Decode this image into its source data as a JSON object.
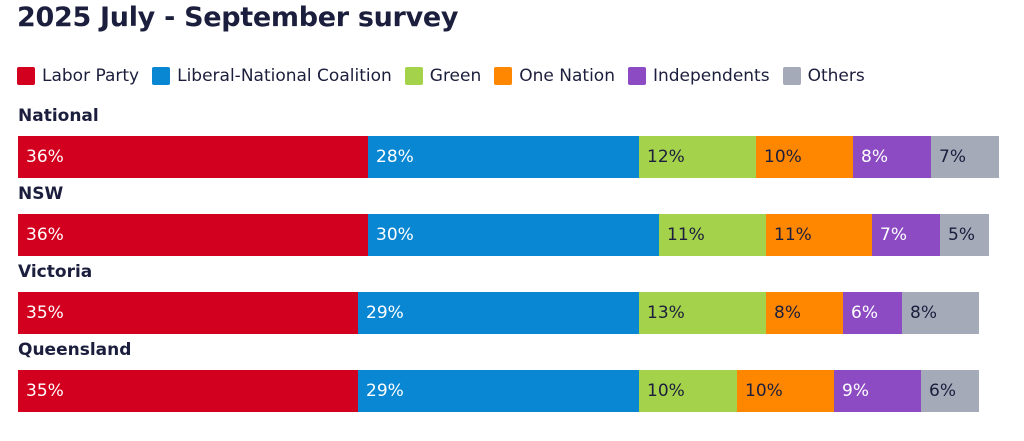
{
  "chart_data": {
    "type": "bar",
    "orientation": "horizontal",
    "stacked": true,
    "title": "2025 July - September survey",
    "legend_position": "top",
    "categories": [
      "National",
      "NSW",
      "Victoria",
      "Queensland"
    ],
    "series": [
      {
        "name": "Labor Party",
        "color": "#d2001e",
        "text_color": "#ffffff",
        "values": [
          36,
          36,
          35,
          35
        ]
      },
      {
        "name": "Liberal-National Coalition",
        "color": "#0a87d2",
        "text_color": "#ffffff",
        "values": [
          28,
          30,
          29,
          29
        ]
      },
      {
        "name": "Green",
        "color": "#a5d24b",
        "text_color": "#1b1e3c",
        "values": [
          12,
          11,
          13,
          10
        ]
      },
      {
        "name": "One Nation",
        "color": "#ff8700",
        "text_color": "#1b1e3c",
        "values": [
          10,
          11,
          8,
          10
        ]
      },
      {
        "name": "Independents",
        "color": "#8c4bc3",
        "text_color": "#ffffff",
        "values": [
          8,
          7,
          6,
          9
        ]
      },
      {
        "name": "Others",
        "color": "#a5aab9",
        "text_color": "#1b1e3c",
        "values": [
          7,
          5,
          8,
          6
        ]
      }
    ]
  }
}
